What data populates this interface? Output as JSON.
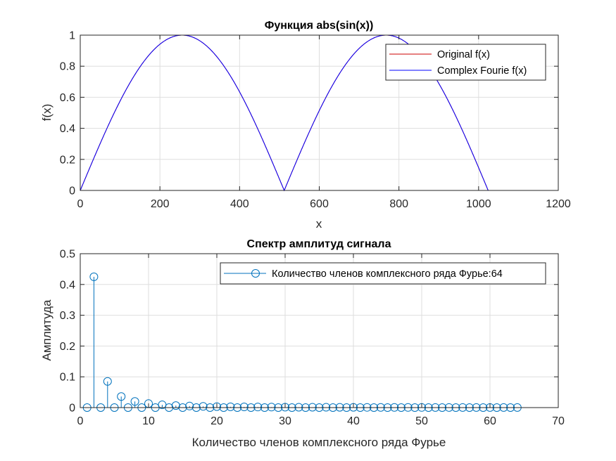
{
  "chart_data": [
    {
      "type": "line",
      "title": "Функция abs(sin(x))",
      "xlabel": "x",
      "ylabel": "f(x)",
      "xlim": [
        0,
        1200
      ],
      "ylim": [
        0,
        1
      ],
      "xticks": [
        "0",
        "200",
        "400",
        "600",
        "800",
        "1000",
        "1200"
      ],
      "yticks": [
        "0",
        "0.2",
        "0.4",
        "0.6",
        "0.8",
        "1"
      ],
      "grid": true,
      "legend_position": "top-right",
      "series": [
        {
          "name": "Original f(x)",
          "color": "#cc0000",
          "function": "abs(sin(pi*n/512))",
          "n_range": [
            0,
            1024
          ]
        },
        {
          "name": "Complex Fourie f(x)",
          "color": "#0000ff",
          "function": "abs(sin(pi*n/512))",
          "n_range": [
            0,
            1024
          ]
        }
      ]
    },
    {
      "type": "stem",
      "title": "Спектр амплитуд сигнала",
      "xlabel": "Количество членов комплексного ряда Фурье",
      "ylabel": "Амплитуда",
      "xlim": [
        0,
        70
      ],
      "ylim": [
        0,
        0.5
      ],
      "xticks": [
        "0",
        "10",
        "20",
        "30",
        "40",
        "50",
        "60",
        "70"
      ],
      "yticks": [
        "0",
        "0.1",
        "0.2",
        "0.3",
        "0.4",
        "0.5"
      ],
      "grid": true,
      "legend_position": "top-right",
      "series": [
        {
          "name": "Количество членов комплексного ряда Фурье:64",
          "color": "#0072bd",
          "x": [
            1,
            2,
            3,
            4,
            5,
            6,
            7,
            8,
            9,
            10,
            11,
            12,
            13,
            14,
            15,
            16,
            17,
            18,
            19,
            20,
            21,
            22,
            23,
            24,
            25,
            26,
            27,
            28,
            29,
            30,
            31,
            32,
            33,
            34,
            35,
            36,
            37,
            38,
            39,
            40,
            41,
            42,
            43,
            44,
            45,
            46,
            47,
            48,
            49,
            50,
            51,
            52,
            53,
            54,
            55,
            56,
            57,
            58,
            59,
            60,
            61,
            62,
            63,
            64
          ],
          "values": [
            0,
            0.425,
            0,
            0.085,
            0,
            0.036,
            0,
            0.02,
            0,
            0.013,
            0,
            0.009,
            0,
            0.0066,
            0,
            0.005,
            0,
            0.004,
            0,
            0.0032,
            0,
            0.0026,
            0,
            0.0022,
            0,
            0.0019,
            0,
            0.0016,
            0,
            0.0014,
            0,
            0.0012,
            0,
            0.0011,
            0,
            0.001,
            0,
            0.0009,
            0,
            0.0008,
            0,
            0.0007,
            0,
            0.0006,
            0,
            0.0006,
            0,
            0.0005,
            0,
            0.0005,
            0,
            0.0004,
            0,
            0.0004,
            0,
            0.0004,
            0,
            0.0003,
            0,
            0.0003,
            0,
            0.0003,
            0,
            0.0003
          ]
        }
      ]
    }
  ]
}
